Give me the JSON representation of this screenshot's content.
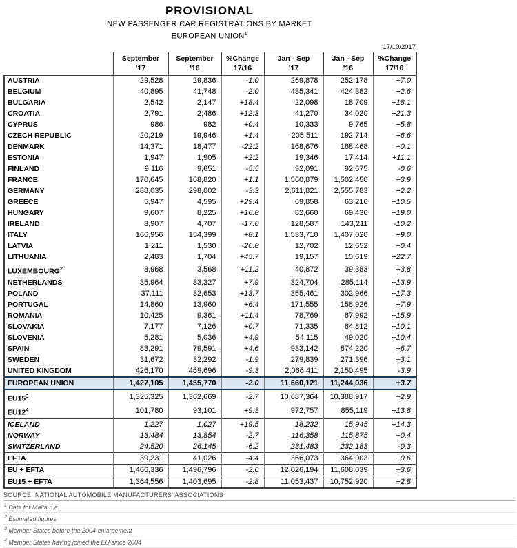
{
  "title": "PROVISIONAL",
  "subtitle1": "NEW PASSENGER CAR REGISTRATIONS BY MARKET",
  "subtitle2": "EUROPEAN UNION",
  "subtitle2_sup": "1",
  "date": "17/10/2017",
  "colors": {
    "eu_row_highlight": "#dce6f1"
  },
  "table": {
    "col_headers": [
      {
        "line1": "September",
        "line2": "'17"
      },
      {
        "line1": "September",
        "line2": "'16"
      },
      {
        "line1": "%Change",
        "line2": "17/16"
      },
      {
        "line1": "Jan - Sep",
        "line2": "'17"
      },
      {
        "line1": "Jan - Sep",
        "line2": "'16"
      },
      {
        "line1": "%Change",
        "line2": "17/16"
      }
    ],
    "rows": [
      {
        "name": "AUSTRIA",
        "sup": "",
        "style": "country",
        "sep": false,
        "values": [
          "29,528",
          "29,836",
          "-1.0",
          "269,878",
          "252,178",
          "+7.0"
        ]
      },
      {
        "name": "BELGIUM",
        "sup": "",
        "style": "country",
        "sep": false,
        "values": [
          "40,895",
          "41,748",
          "-2.0",
          "435,341",
          "424,382",
          "+2.6"
        ]
      },
      {
        "name": "BULGARIA",
        "sup": "",
        "style": "country",
        "sep": false,
        "values": [
          "2,542",
          "2,147",
          "+18.4",
          "22,098",
          "18,709",
          "+18.1"
        ]
      },
      {
        "name": "CROATIA",
        "sup": "",
        "style": "country",
        "sep": false,
        "values": [
          "2,791",
          "2,486",
          "+12.3",
          "41,270",
          "34,020",
          "+21.3"
        ]
      },
      {
        "name": "CYPRUS",
        "sup": "",
        "style": "country",
        "sep": false,
        "values": [
          "986",
          "982",
          "+0.4",
          "10,333",
          "9,765",
          "+5.8"
        ]
      },
      {
        "name": "CZECH REPUBLIC",
        "sup": "",
        "style": "country",
        "sep": false,
        "values": [
          "20,219",
          "19,946",
          "+1.4",
          "205,511",
          "192,714",
          "+6.6"
        ]
      },
      {
        "name": "DENMARK",
        "sup": "",
        "style": "country",
        "sep": false,
        "values": [
          "14,371",
          "18,477",
          "-22.2",
          "168,676",
          "168,468",
          "+0.1"
        ]
      },
      {
        "name": "ESTONIA",
        "sup": "",
        "style": "country",
        "sep": false,
        "values": [
          "1,947",
          "1,905",
          "+2.2",
          "19,346",
          "17,414",
          "+11.1"
        ]
      },
      {
        "name": "FINLAND",
        "sup": "",
        "style": "country",
        "sep": false,
        "values": [
          "9,116",
          "9,651",
          "-5.5",
          "92,091",
          "92,675",
          "-0.6"
        ]
      },
      {
        "name": "FRANCE",
        "sup": "",
        "style": "country",
        "sep": false,
        "values": [
          "170,645",
          "168,820",
          "+1.1",
          "1,560,879",
          "1,502,450",
          "+3.9"
        ]
      },
      {
        "name": "GERMANY",
        "sup": "",
        "style": "country",
        "sep": false,
        "values": [
          "288,035",
          "298,002",
          "-3.3",
          "2,611,821",
          "2,555,783",
          "+2.2"
        ]
      },
      {
        "name": "GREECE",
        "sup": "",
        "style": "country",
        "sep": false,
        "values": [
          "5,947",
          "4,595",
          "+29.4",
          "69,858",
          "63,216",
          "+10.5"
        ]
      },
      {
        "name": "HUNGARY",
        "sup": "",
        "style": "country",
        "sep": false,
        "values": [
          "9,607",
          "8,225",
          "+16.8",
          "82,660",
          "69,436",
          "+19.0"
        ]
      },
      {
        "name": "IRELAND",
        "sup": "",
        "style": "country",
        "sep": false,
        "values": [
          "3,907",
          "4,707",
          "-17.0",
          "128,587",
          "143,211",
          "-10.2"
        ]
      },
      {
        "name": "ITALY",
        "sup": "",
        "style": "country",
        "sep": false,
        "values": [
          "166,956",
          "154,399",
          "+8.1",
          "1,533,710",
          "1,407,020",
          "+9.0"
        ]
      },
      {
        "name": "LATVIA",
        "sup": "",
        "style": "country",
        "sep": false,
        "values": [
          "1,211",
          "1,530",
          "-20.8",
          "12,702",
          "12,652",
          "+0.4"
        ]
      },
      {
        "name": "LITHUANIA",
        "sup": "",
        "style": "country",
        "sep": false,
        "values": [
          "2,483",
          "1,704",
          "+45.7",
          "19,157",
          "15,619",
          "+22.7"
        ]
      },
      {
        "name": "LUXEMBOURG",
        "sup": "2",
        "style": "country",
        "sep": false,
        "values": [
          "3,968",
          "3,568",
          "+11.2",
          "40,872",
          "39,383",
          "+3.8"
        ]
      },
      {
        "name": "NETHERLANDS",
        "sup": "",
        "style": "country",
        "sep": false,
        "values": [
          "35,964",
          "33,327",
          "+7.9",
          "324,704",
          "285,114",
          "+13.9"
        ]
      },
      {
        "name": "POLAND",
        "sup": "",
        "style": "country",
        "sep": false,
        "values": [
          "37,111",
          "32,653",
          "+13.7",
          "355,461",
          "302,966",
          "+17.3"
        ]
      },
      {
        "name": "PORTUGAL",
        "sup": "",
        "style": "country",
        "sep": false,
        "values": [
          "14,860",
          "13,960",
          "+6.4",
          "171,555",
          "158,926",
          "+7.9"
        ]
      },
      {
        "name": "ROMANIA",
        "sup": "",
        "style": "country",
        "sep": false,
        "values": [
          "10,425",
          "9,361",
          "+11.4",
          "78,769",
          "67,992",
          "+15.9"
        ]
      },
      {
        "name": "SLOVAKIA",
        "sup": "",
        "style": "country",
        "sep": false,
        "values": [
          "7,177",
          "7,126",
          "+0.7",
          "71,335",
          "64,812",
          "+10.1"
        ]
      },
      {
        "name": "SLOVENIA",
        "sup": "",
        "style": "country",
        "sep": false,
        "values": [
          "5,281",
          "5,036",
          "+4.9",
          "54,115",
          "49,020",
          "+10.4"
        ]
      },
      {
        "name": "SPAIN",
        "sup": "",
        "style": "country",
        "sep": false,
        "values": [
          "83,291",
          "79,591",
          "+4.6",
          "933,142",
          "874,220",
          "+6.7"
        ]
      },
      {
        "name": "SWEDEN",
        "sup": "",
        "style": "country",
        "sep": false,
        "values": [
          "31,672",
          "32,292",
          "-1.9",
          "279,839",
          "271,396",
          "+3.1"
        ]
      },
      {
        "name": "UNITED KINGDOM",
        "sup": "",
        "style": "country",
        "sep": false,
        "values": [
          "426,170",
          "469,696",
          "-9.3",
          "2,066,411",
          "2,150,495",
          "-3.9"
        ]
      },
      {
        "name": "EUROPEAN UNION",
        "sup": "",
        "style": "eu",
        "sep": false,
        "values": [
          "1,427,105",
          "1,455,770",
          "-2.0",
          "11,660,121",
          "11,244,036",
          "+3.7"
        ]
      },
      {
        "name": "EU15",
        "sup": "3",
        "style": "agg",
        "sep": false,
        "values": [
          "1,325,325",
          "1,362,669",
          "-2.7",
          "10,687,364",
          "10,388,917",
          "+2.9"
        ]
      },
      {
        "name": "EU12",
        "sup": "4",
        "style": "agg",
        "sep": false,
        "values": [
          "101,780",
          "93,101",
          "+9.3",
          "972,757",
          "855,119",
          "+13.8"
        ]
      },
      {
        "name": "ICELAND",
        "sup": "",
        "style": "efta_country",
        "sep": true,
        "values": [
          "1,227",
          "1,027",
          "+19.5",
          "18,232",
          "15,945",
          "+14.3"
        ]
      },
      {
        "name": "NORWAY",
        "sup": "",
        "style": "efta_country",
        "sep": false,
        "values": [
          "13,484",
          "13,854",
          "-2.7",
          "116,358",
          "115,875",
          "+0.4"
        ]
      },
      {
        "name": "SWITZERLAND",
        "sup": "",
        "style": "efta_country",
        "sep": false,
        "values": [
          "24,520",
          "26,145",
          "-6.2",
          "231,483",
          "232,183",
          "-0.3"
        ]
      },
      {
        "name": "EFTA",
        "sup": "",
        "style": "total",
        "sep": true,
        "values": [
          "39,231",
          "41,026",
          "-4.4",
          "366,073",
          "364,003",
          "+0.6"
        ]
      },
      {
        "name": "EU + EFTA",
        "sup": "",
        "style": "total",
        "sep": true,
        "values": [
          "1,466,336",
          "1,496,796",
          "-2.0",
          "12,026,194",
          "11,608,039",
          "+3.6"
        ]
      },
      {
        "name": "EU15 + EFTA",
        "sup": "",
        "style": "total",
        "sep": true,
        "values": [
          "1,364,556",
          "1,403,695",
          "-2.8",
          "11,053,437",
          "10,752,920",
          "+2.8"
        ]
      }
    ]
  },
  "source": "SOURCE: NATIONAL AUTOMOBILE MANUFACTURERS' ASSOCIATIONS",
  "footnotes": [
    {
      "mark": "1",
      "text": "Data for Malta n.a."
    },
    {
      "mark": "2",
      "text": "Estimated figures"
    },
    {
      "mark": "3",
      "text": "Member States before the 2004 enlargement"
    },
    {
      "mark": "4",
      "text": "Member States having joined the EU since 2004"
    }
  ]
}
